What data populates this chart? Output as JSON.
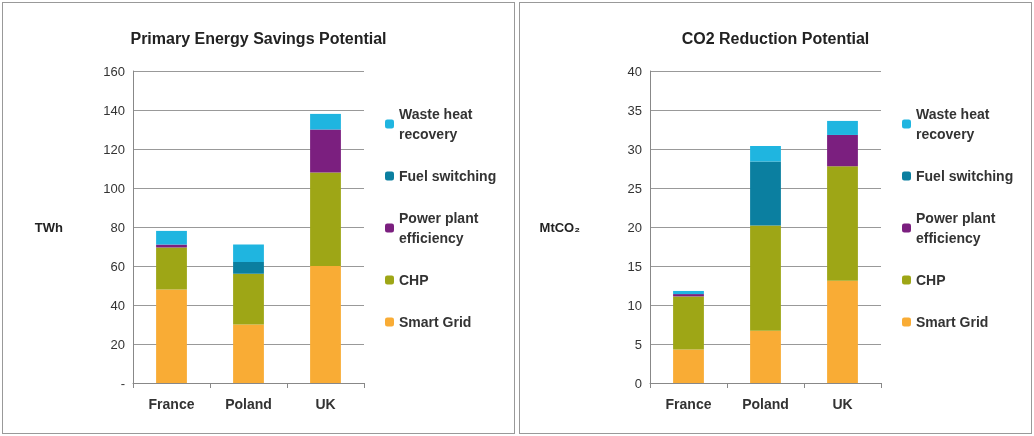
{
  "chart_data": [
    {
      "type": "bar",
      "title": "Primary Energy Savings Potential",
      "ylabel": "TWh",
      "categories": [
        "France",
        "Poland",
        "UK"
      ],
      "stacked": true,
      "series": [
        {
          "name": "Smart Grid",
          "color": "#f9ac35",
          "values": [
            48,
            30,
            60
          ]
        },
        {
          "name": "CHP",
          "color": "#9ea616",
          "values": [
            21.5,
            26,
            48
          ]
        },
        {
          "name": "Power plant efficiency",
          "color": "#7b1f7f",
          "values": [
            1.5,
            0,
            22
          ]
        },
        {
          "name": "Fuel switching",
          "color": "#0b7fa0",
          "values": [
            0,
            6,
            0
          ]
        },
        {
          "name": "Waste heat recovery",
          "color": "#1fb5e0",
          "values": [
            7,
            9,
            8
          ]
        }
      ],
      "ylim": [
        0,
        160
      ],
      "yticks": [
        {
          "value": 0,
          "label": "-"
        },
        20,
        40,
        60,
        80,
        100,
        120,
        140,
        160
      ],
      "grid": "y",
      "legend": "right"
    },
    {
      "type": "bar",
      "title": "CO2 Reduction Potential",
      "ylabel": "MtCO₂",
      "categories": [
        "France",
        "Poland",
        "UK"
      ],
      "stacked": true,
      "series": [
        {
          "name": "Smart Grid",
          "color": "#f9ac35",
          "values": [
            4.3,
            6.7,
            13.1
          ]
        },
        {
          "name": "CHP",
          "color": "#9ea616",
          "values": [
            6.8,
            13.5,
            14.7
          ]
        },
        {
          "name": "Power plant efficiency",
          "color": "#7b1f7f",
          "values": [
            0.3,
            0,
            4
          ]
        },
        {
          "name": "Fuel switching",
          "color": "#0b7fa0",
          "values": [
            0,
            8.2,
            0
          ]
        },
        {
          "name": "Waste heat recovery",
          "color": "#1fb5e0",
          "values": [
            0.4,
            2,
            1.8
          ]
        }
      ],
      "ylim": [
        0,
        40
      ],
      "yticks": [
        0,
        5,
        10,
        15,
        20,
        25,
        30,
        35,
        40
      ],
      "grid": "y",
      "legend": "right"
    }
  ]
}
